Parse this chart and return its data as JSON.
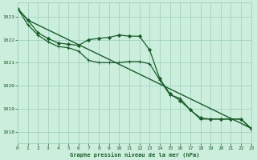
{
  "title": "Graphe pression niveau de la mer (hPa)",
  "bg_color": "#cceedd",
  "grid_color": "#99ccbb",
  "line_color": "#1a5c2a",
  "x_min": 0,
  "x_max": 23,
  "y_min": 1017.5,
  "y_max": 1023.6,
  "y_ticks": [
    1018,
    1019,
    1020,
    1021,
    1022,
    1023
  ],
  "x_ticks": [
    0,
    1,
    2,
    3,
    4,
    5,
    6,
    7,
    8,
    9,
    10,
    11,
    12,
    13,
    14,
    15,
    16,
    17,
    18,
    19,
    20,
    21,
    22,
    23
  ],
  "series": [
    {
      "x": [
        0,
        1,
        23
      ],
      "y": [
        1023.35,
        1022.85,
        1018.15
      ],
      "marker": "None",
      "markersize": 0,
      "linewidth": 1.0
    },
    {
      "x": [
        0,
        1,
        2,
        3,
        4,
        5,
        6,
        7,
        8,
        9,
        10,
        11,
        12,
        13,
        14,
        15,
        16,
        17,
        18,
        19,
        20,
        21,
        22,
        23
      ],
      "y": [
        1023.35,
        1022.85,
        1022.3,
        1022.05,
        1021.85,
        1021.8,
        1021.75,
        1022.0,
        1022.05,
        1022.1,
        1022.2,
        1022.15,
        1022.15,
        1021.55,
        1020.3,
        1019.65,
        1019.35,
        1018.95,
        1018.6,
        1018.55,
        1018.55,
        1018.55,
        1018.55,
        1018.15
      ],
      "marker": "D",
      "markersize": 2.0,
      "linewidth": 0.9
    },
    {
      "x": [
        0,
        1,
        2,
        3,
        4,
        5,
        6,
        7,
        8,
        9,
        10,
        11,
        12,
        13,
        14,
        15,
        16,
        17,
        18,
        19,
        20,
        21,
        22,
        23
      ],
      "y": [
        1023.35,
        1022.65,
        1022.2,
        1021.9,
        1021.7,
        1021.65,
        1021.5,
        1021.1,
        1021.0,
        1021.0,
        1021.0,
        1021.05,
        1021.05,
        1020.95,
        1020.25,
        1019.6,
        1019.45,
        1018.95,
        1018.55,
        1018.55,
        1018.55,
        1018.55,
        1018.55,
        1018.1
      ],
      "marker": "+",
      "markersize": 3.5,
      "linewidth": 0.9
    }
  ]
}
